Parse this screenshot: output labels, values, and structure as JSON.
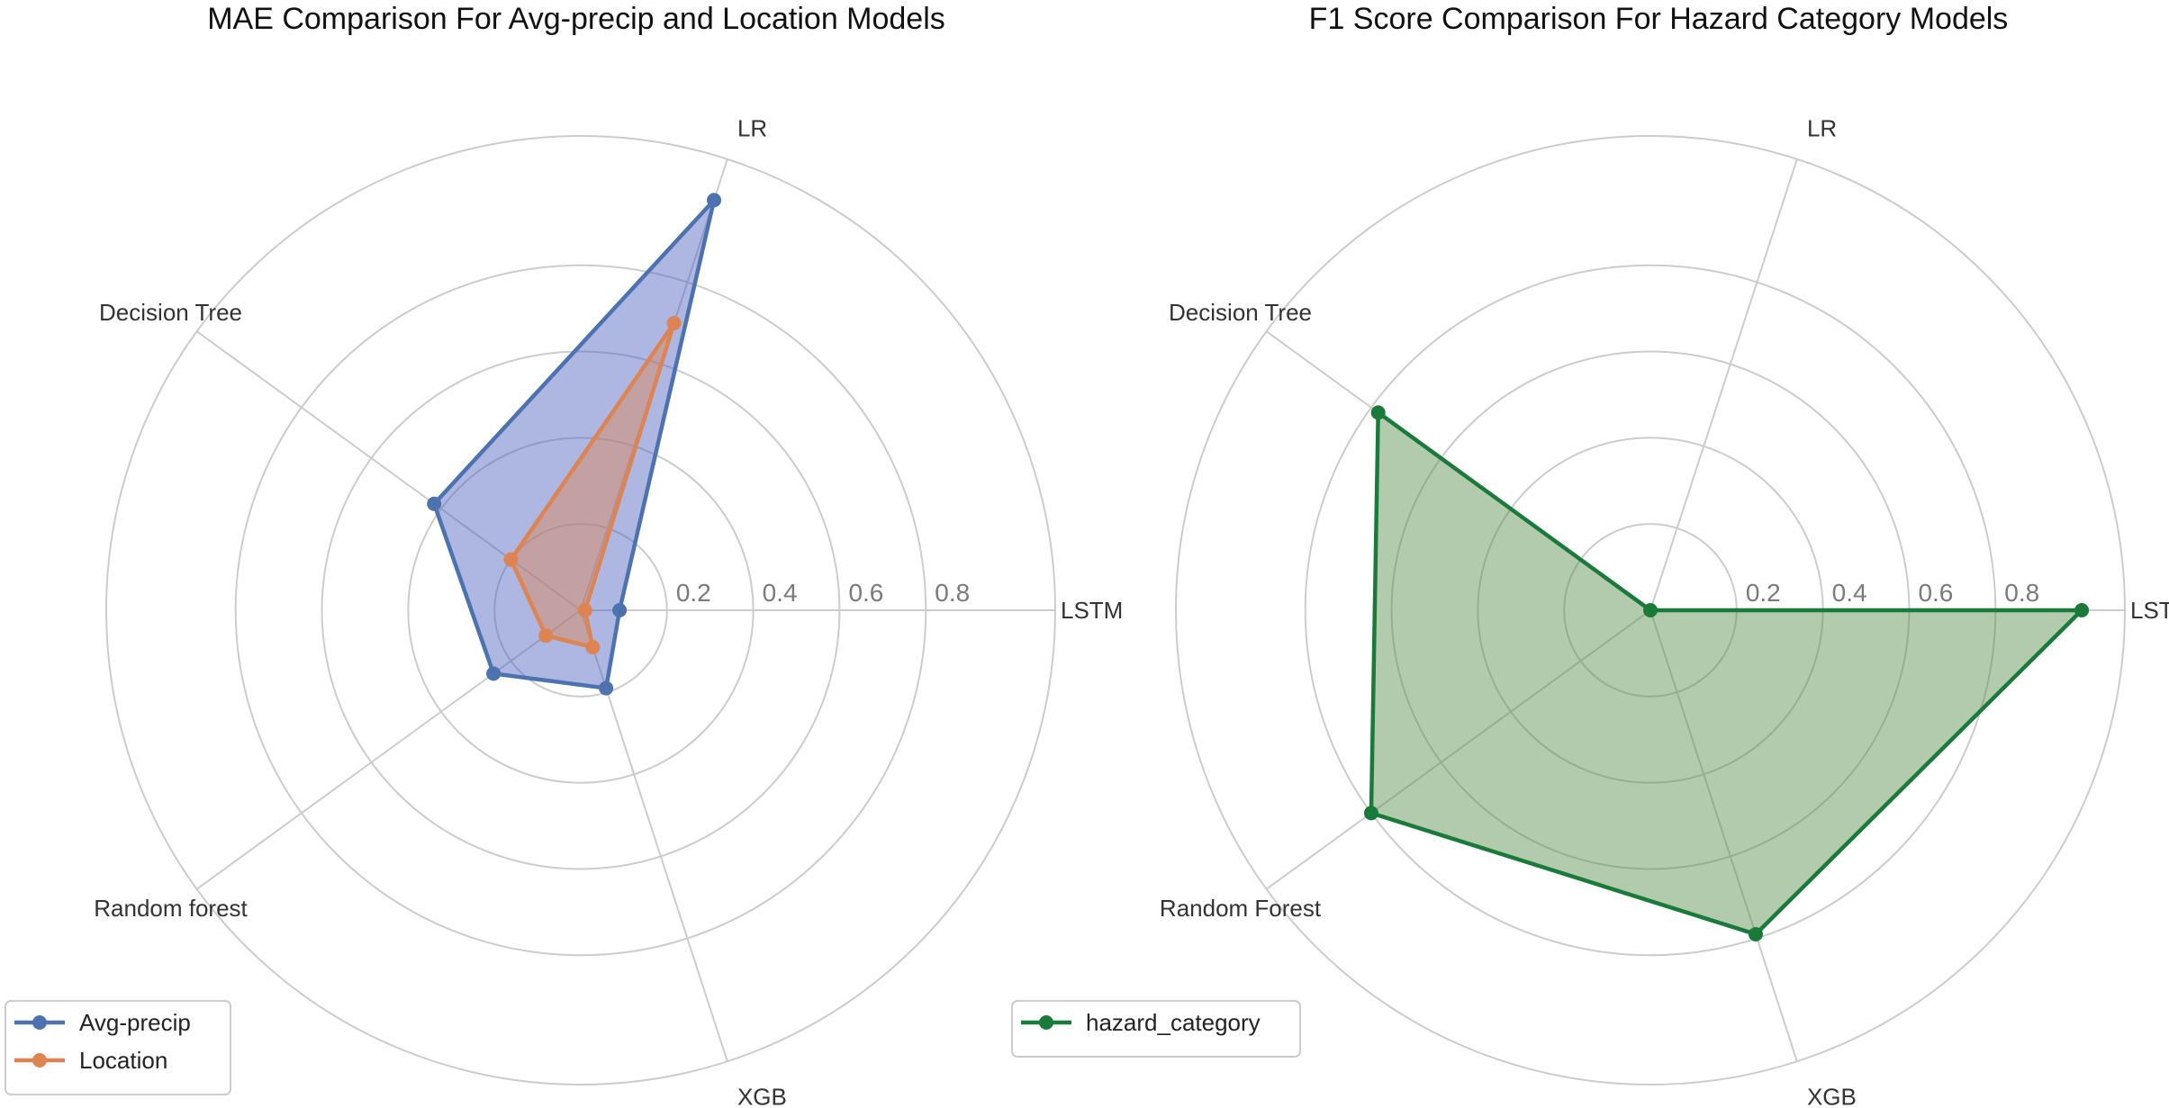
{
  "chart_data": [
    {
      "type": "radar",
      "title": "MAE Comparison For Avg-precip and Location Models",
      "categories": [
        "LSTM",
        "LR",
        "Decision Tree",
        "Random forest",
        "XGB"
      ],
      "rlim": [
        0,
        1.1
      ],
      "rticks": [
        0.2,
        0.4,
        0.6,
        0.8
      ],
      "rtick_labels": [
        "0.2",
        "0.4",
        "0.6",
        "0.8"
      ],
      "grid": true,
      "legend_position": "bottom-left",
      "series": [
        {
          "name": "Avg-precip",
          "values": [
            0.09,
            1.0,
            0.42,
            0.25,
            0.19
          ],
          "color": "#4c72b0",
          "fill": "#4c5fbf"
        },
        {
          "name": "Location",
          "values": [
            0.01,
            0.7,
            0.2,
            0.1,
            0.09
          ],
          "color": "#dd8452",
          "fill": "#dd8452"
        }
      ]
    },
    {
      "type": "radar",
      "title": "F1 Score Comparison For Hazard Category Models",
      "categories": [
        "LSTM",
        "LR",
        "Decision Tree",
        "Random Forest",
        "XGB"
      ],
      "rlim": [
        0,
        1.1
      ],
      "rticks": [
        0.2,
        0.4,
        0.6,
        0.8
      ],
      "rtick_labels": [
        "0.2",
        "0.4",
        "0.6",
        "0.8"
      ],
      "grid": true,
      "legend_position": "bottom-left",
      "series": [
        {
          "name": "hazard_category",
          "values": [
            1.0,
            0.0,
            0.78,
            0.8,
            0.79
          ],
          "color": "#1a7a3a",
          "fill": "#568c4a"
        }
      ]
    }
  ]
}
